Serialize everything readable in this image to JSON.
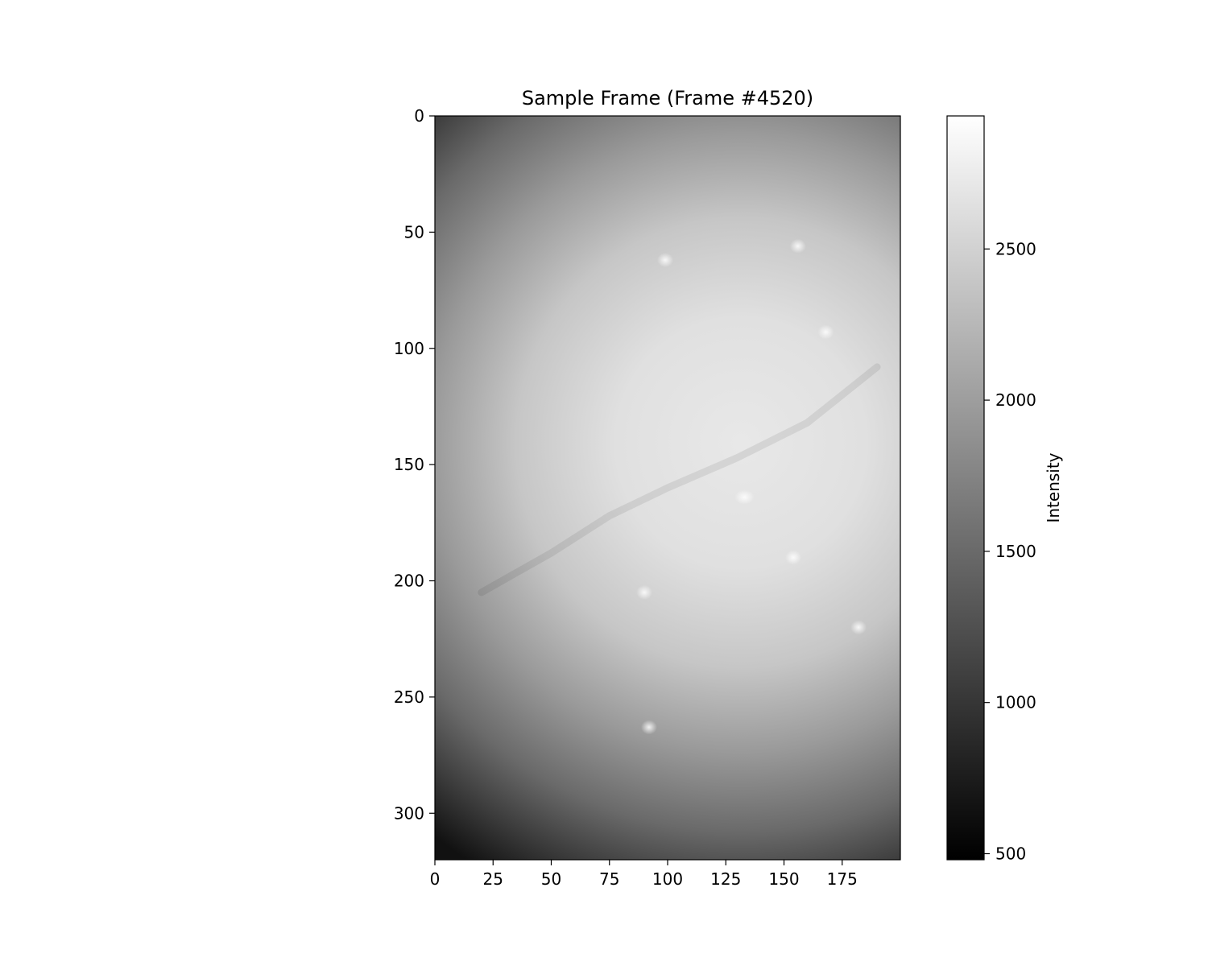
{
  "chart_data": {
    "type": "heatmap",
    "title": "Sample Frame (Frame #4520)",
    "colormap": "gray",
    "image_width": 200,
    "image_height": 320,
    "x_ticks": [
      0,
      25,
      50,
      75,
      100,
      125,
      150,
      175
    ],
    "y_ticks": [
      0,
      50,
      100,
      150,
      200,
      250,
      300
    ],
    "xlim": [
      0,
      200
    ],
    "ylim": [
      320,
      0
    ],
    "colorbar": {
      "label": "Intensity",
      "range": [
        480,
        2940
      ],
      "ticks": [
        500,
        1000,
        1500,
        2000,
        2500
      ]
    },
    "field": {
      "bright_center": [
        155,
        150
      ],
      "peak_intensity": 2700,
      "corner_intensity": 520,
      "vessel_line": [
        [
          20,
          205
        ],
        [
          50,
          188
        ],
        [
          75,
          172
        ],
        [
          100,
          160
        ],
        [
          130,
          147
        ],
        [
          160,
          132
        ],
        [
          190,
          108
        ]
      ],
      "bright_spots": [
        [
          133,
          164
        ],
        [
          99,
          62
        ],
        [
          156,
          56
        ],
        [
          154,
          190
        ],
        [
          182,
          220
        ],
        [
          168,
          93
        ],
        [
          90,
          205
        ],
        [
          92,
          263
        ]
      ]
    }
  }
}
